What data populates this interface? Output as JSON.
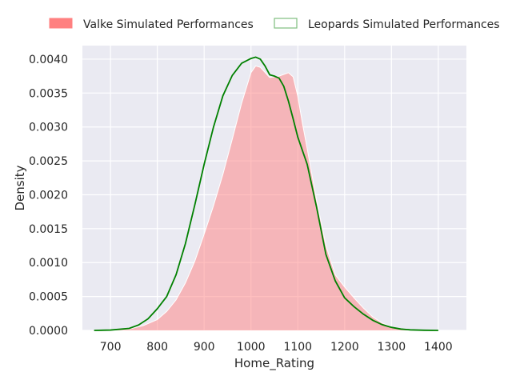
{
  "chart_data": {
    "type": "area",
    "xlabel": "Home_Rating",
    "ylabel": "Density",
    "xlim": [
      640,
      1460
    ],
    "ylim": [
      0,
      0.0042
    ],
    "xticks": [
      700,
      800,
      900,
      1000,
      1100,
      1200,
      1300,
      1400
    ],
    "yticks": [
      0.0,
      0.0005,
      0.001,
      0.0015,
      0.002,
      0.0025,
      0.003,
      0.0035,
      0.004
    ],
    "ytick_labels": [
      "0.0000",
      "0.0005",
      "0.0010",
      "0.0015",
      "0.0020",
      "0.0025",
      "0.0030",
      "0.0035",
      "0.0040"
    ],
    "grid": true,
    "legend_position": "top",
    "series": [
      {
        "name": "Valke Simulated Performances",
        "style": "filled area",
        "color": "#ff8080",
        "fill_opacity": 0.5,
        "x": [
          665,
          700,
          740,
          770,
          800,
          820,
          840,
          860,
          880,
          900,
          920,
          940,
          960,
          980,
          1000,
          1010,
          1020,
          1040,
          1060,
          1080,
          1090,
          1100,
          1110,
          1120,
          1140,
          1160,
          1180,
          1200,
          1220,
          1240,
          1260,
          1280,
          1300,
          1320,
          1340,
          1370,
          1400,
          1440
        ],
        "y": [
          0.0,
          5e-06,
          2e-05,
          7e-05,
          0.00016,
          0.00028,
          0.00045,
          0.0007,
          0.00102,
          0.00142,
          0.00184,
          0.0023,
          0.00282,
          0.00335,
          0.0038,
          0.0039,
          0.00388,
          0.00373,
          0.00375,
          0.0038,
          0.00374,
          0.00345,
          0.00305,
          0.00268,
          0.00192,
          0.00125,
          0.00082,
          0.00064,
          0.00048,
          0.00033,
          0.0002,
          0.00011,
          5.5e-05,
          2.5e-05,
          1e-05,
          4e-06,
          1e-06,
          0.0
        ]
      },
      {
        "name": "Leopards Simulated Performances",
        "style": "line",
        "color": "#008000",
        "x": [
          665,
          700,
          740,
          760,
          780,
          800,
          820,
          840,
          860,
          880,
          900,
          920,
          940,
          960,
          980,
          1000,
          1010,
          1020,
          1030,
          1040,
          1050,
          1060,
          1070,
          1080,
          1090,
          1100,
          1120,
          1140,
          1160,
          1180,
          1200,
          1220,
          1240,
          1260,
          1280,
          1300,
          1320,
          1340,
          1370,
          1400
        ],
        "y": [
          0.0,
          5e-06,
          3e-05,
          8e-05,
          0.00017,
          0.00032,
          0.0005,
          0.00082,
          0.00128,
          0.00185,
          0.00245,
          0.003,
          0.00346,
          0.00376,
          0.00394,
          0.00401,
          0.00403,
          0.004,
          0.0039,
          0.00377,
          0.00375,
          0.00372,
          0.0036,
          0.00338,
          0.00312,
          0.00285,
          0.00245,
          0.00182,
          0.00112,
          0.00073,
          0.00048,
          0.00035,
          0.00024,
          0.00015,
          8.5e-05,
          4.5e-05,
          2e-05,
          8e-06,
          2e-06,
          0.0
        ]
      }
    ]
  }
}
